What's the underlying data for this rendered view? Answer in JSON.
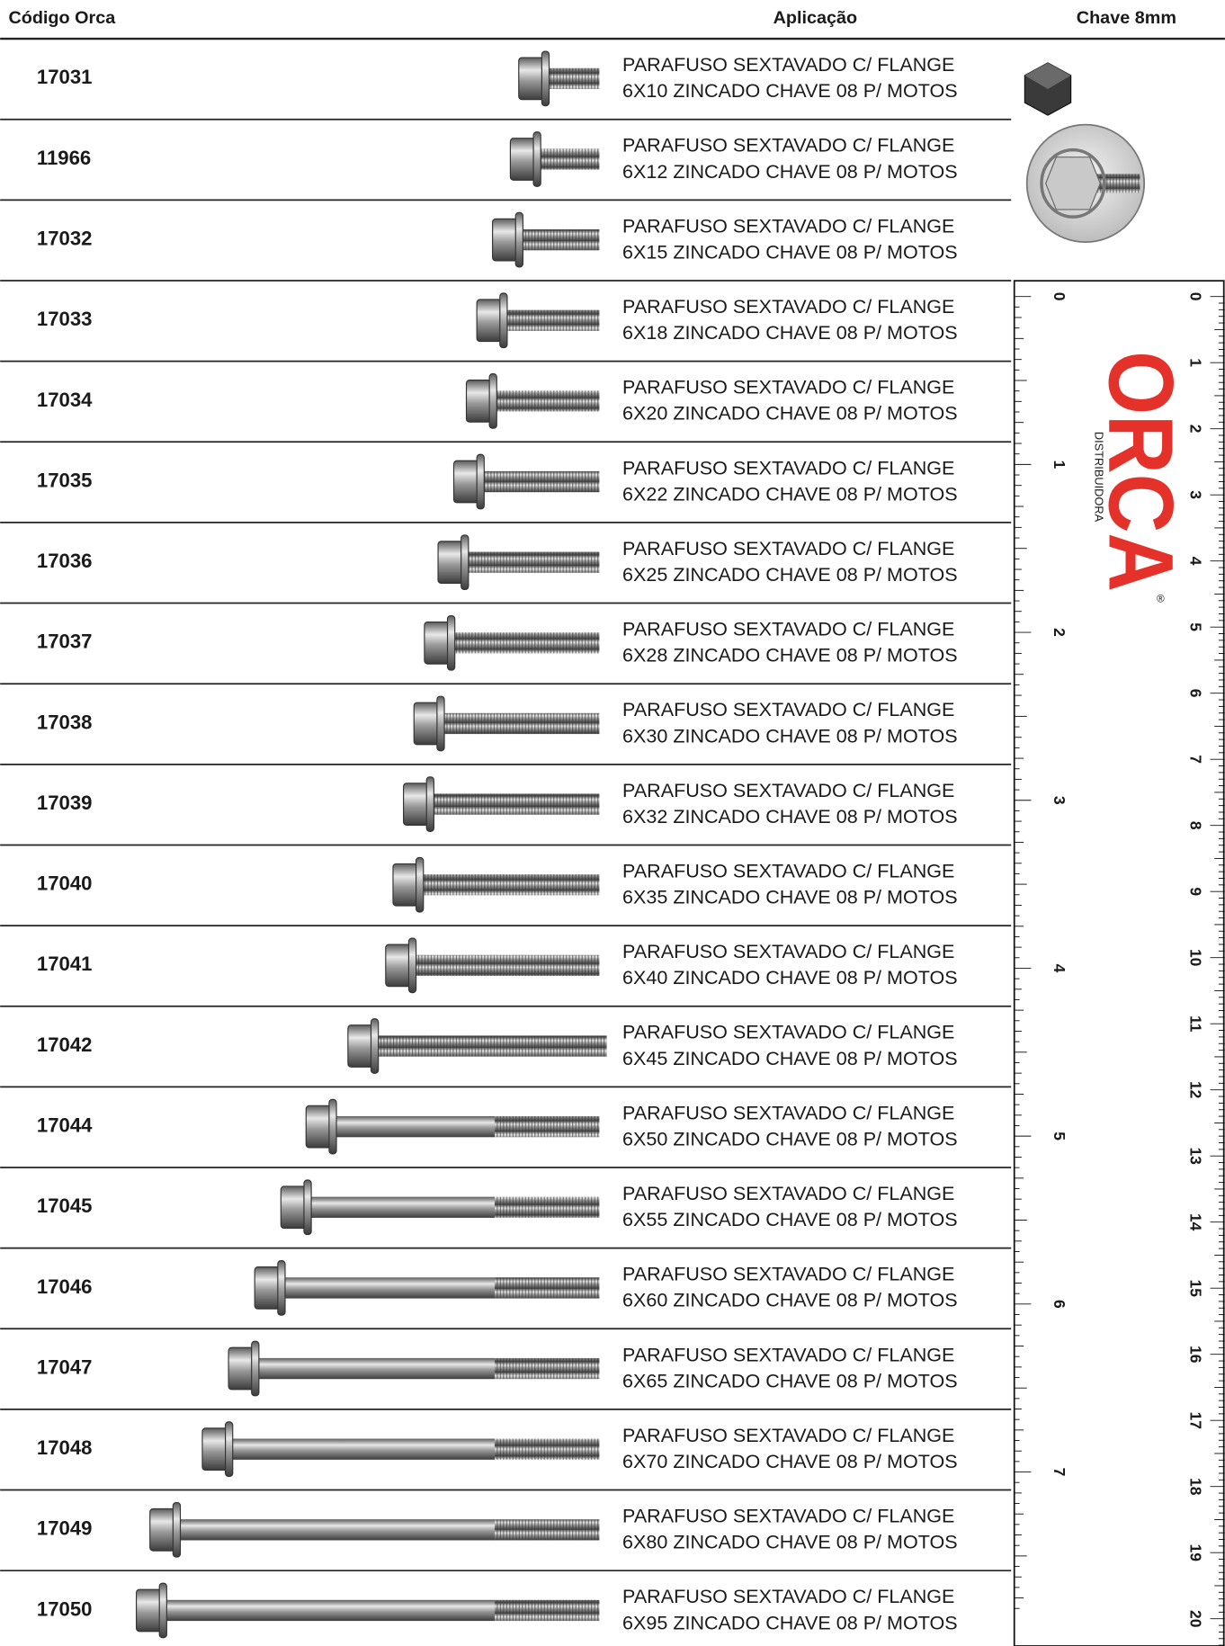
{
  "header": {
    "code": "Código Orca",
    "application": "Aplicação",
    "key": "Chave 8mm"
  },
  "rows": [
    {
      "code": "17031",
      "line1": "PARAFUSO SEXTAVADO C/ FLANGE",
      "line2": "6X10 ZINCADO CHAVE 08 P/ MOTOS"
    },
    {
      "code": "11966",
      "line1": "PARAFUSO SEXTAVADO C/ FLANGE",
      "line2": "6X12 ZINCADO CHAVE 08 P/ MOTOS"
    },
    {
      "code": "17032",
      "line1": "PARAFUSO SEXTAVADO C/ FLANGE",
      "line2": "6X15 ZINCADO CHAVE 08 P/ MOTOS"
    },
    {
      "code": "17033",
      "line1": "PARAFUSO SEXTAVADO C/ FLANGE",
      "line2": "6X18 ZINCADO CHAVE 08 P/ MOTOS"
    },
    {
      "code": "17034",
      "line1": "PARAFUSO SEXTAVADO C/ FLANGE",
      "line2": "6X20 ZINCADO CHAVE 08 P/ MOTOS"
    },
    {
      "code": "17035",
      "line1": "PARAFUSO SEXTAVADO C/ FLANGE",
      "line2": "6X22 ZINCADO CHAVE 08 P/ MOTOS"
    },
    {
      "code": "17036",
      "line1": "PARAFUSO SEXTAVADO C/ FLANGE",
      "line2": "6X25 ZINCADO CHAVE 08 P/ MOTOS"
    },
    {
      "code": "17037",
      "line1": "PARAFUSO SEXTAVADO C/ FLANGE",
      "line2": "6X28 ZINCADO CHAVE 08 P/ MOTOS"
    },
    {
      "code": "17038",
      "line1": "PARAFUSO SEXTAVADO C/ FLANGE",
      "line2": "6X30 ZINCADO CHAVE 08 P/ MOTOS"
    },
    {
      "code": "17039",
      "line1": "PARAFUSO SEXTAVADO C/ FLANGE",
      "line2": "6X32 ZINCADO CHAVE 08 P/ MOTOS"
    },
    {
      "code": "17040",
      "line1": "PARAFUSO SEXTAVADO C/ FLANGE",
      "line2": "6X35 ZINCADO CHAVE 08 P/ MOTOS"
    },
    {
      "code": "17041",
      "line1": "PARAFUSO SEXTAVADO C/ FLANGE",
      "line2": "6X40 ZINCADO CHAVE 08 P/ MOTOS"
    },
    {
      "code": "17042",
      "line1": "PARAFUSO SEXTAVADO C/ FLANGE",
      "line2": "6X45 ZINCADO CHAVE 08 P/ MOTOS"
    },
    {
      "code": "17044",
      "line1": "PARAFUSO SEXTAVADO C/ FLANGE",
      "line2": "6X50 ZINCADO CHAVE 08 P/ MOTOS"
    },
    {
      "code": "17045",
      "line1": "PARAFUSO SEXTAVADO C/ FLANGE",
      "line2": "6X55 ZINCADO CHAVE 08 P/ MOTOS"
    },
    {
      "code": "17046",
      "line1": "PARAFUSO SEXTAVADO C/ FLANGE",
      "line2": "6X60 ZINCADO CHAVE 08 P/ MOTOS"
    },
    {
      "code": "17047",
      "line1": "PARAFUSO SEXTAVADO C/ FLANGE",
      "line2": "6X65 ZINCADO CHAVE 08 P/ MOTOS"
    },
    {
      "code": "17048",
      "line1": "PARAFUSO SEXTAVADO C/ FLANGE",
      "line2": "6X70 ZINCADO CHAVE 08 P/ MOTOS"
    },
    {
      "code": "17049",
      "line1": "PARAFUSO SEXTAVADO C/ FLANGE",
      "line2": "6X80 ZINCADO CHAVE 08 P/ MOTOS"
    },
    {
      "code": "17050",
      "line1": "PARAFUSO SEXTAVADO C/ FLANGE",
      "line2": "6X95 ZINCADO CHAVE 08 P/ MOTOS"
    }
  ],
  "logo": {
    "name": "ORCA",
    "subtitle": "DISTRIBUIDORA",
    "mark": "®"
  },
  "ruler": {
    "inch": [
      0,
      1,
      2,
      3,
      4,
      5,
      6,
      7
    ],
    "cm": [
      0,
      1,
      2,
      3,
      4,
      5,
      6,
      7,
      8,
      9,
      10,
      11,
      12,
      13,
      14,
      15,
      16,
      17,
      18,
      19,
      20
    ]
  }
}
